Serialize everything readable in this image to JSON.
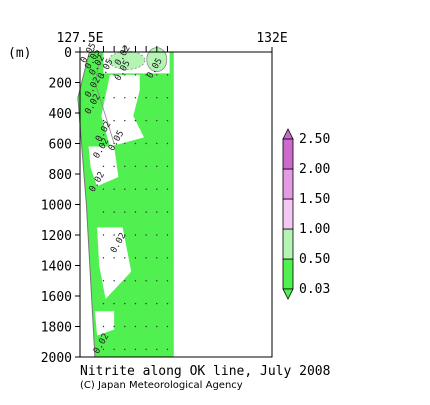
{
  "chart_data": {
    "type": "contour",
    "title": "Nitrite along OK line, July 2008",
    "credit": "(C) Japan Meteorological Agency",
    "x_axis": {
      "ticks": [
        {
          "value": 127.5,
          "label": "127.5E"
        },
        {
          "value": 132.0,
          "label": "132E"
        }
      ],
      "range": [
        127.5,
        132.0
      ]
    },
    "y_axis": {
      "unit_label": "(m)",
      "inverted": true,
      "range": [
        0,
        2000
      ],
      "ticks": [
        0,
        200,
        400,
        600,
        800,
        1000,
        1200,
        1400,
        1600,
        1800,
        2000
      ],
      "tick_labels": [
        "0",
        "200",
        "400",
        "600",
        "800",
        "1000",
        "1200",
        "1400",
        "1600",
        "1800",
        "2000"
      ]
    },
    "station_marks_lon": [
      128.05,
      128.3,
      128.55,
      128.8,
      129.05,
      129.3,
      129.55
    ],
    "data_extent_lon": [
      127.85,
      129.7
    ],
    "colorbar": {
      "levels": [
        0.03,
        0.5,
        1.0,
        1.5,
        2.0,
        2.5
      ],
      "labels": [
        "0.03",
        "0.50",
        "1.00",
        "1.50",
        "2.00",
        "2.50"
      ],
      "colors": [
        "#50f050",
        "#b4f5b4",
        "#f3c8f3",
        "#e39ce3",
        "#cd6acd"
      ]
    },
    "contour_labels": [
      {
        "text": "0.02",
        "lon": 128.55,
        "depth": 30
      },
      {
        "text": "0.05",
        "lon": 127.75,
        "depth": 15
      },
      {
        "text": "0.05",
        "lon": 127.85,
        "depth": 55
      },
      {
        "text": "0.02",
        "lon": 127.95,
        "depth": 95
      },
      {
        "text": "0.05",
        "lon": 128.15,
        "depth": 120
      },
      {
        "text": "0.05",
        "lon": 128.55,
        "depth": 130
      },
      {
        "text": "0.05",
        "lon": 129.3,
        "depth": 115
      },
      {
        "text": "0.02",
        "lon": 127.85,
        "depth": 240
      },
      {
        "text": "0.02",
        "lon": 127.85,
        "depth": 350
      },
      {
        "text": "0.02",
        "lon": 128.1,
        "depth": 530
      },
      {
        "text": "0.02",
        "lon": 128.05,
        "depth": 640
      },
      {
        "text": "0.05",
        "lon": 128.4,
        "depth": 590
      },
      {
        "text": "0.02",
        "lon": 127.95,
        "depth": 860
      },
      {
        "text": "0.02",
        "lon": 128.45,
        "depth": 1260
      },
      {
        "text": "0.02",
        "lon": 128.05,
        "depth": 1920
      }
    ]
  }
}
